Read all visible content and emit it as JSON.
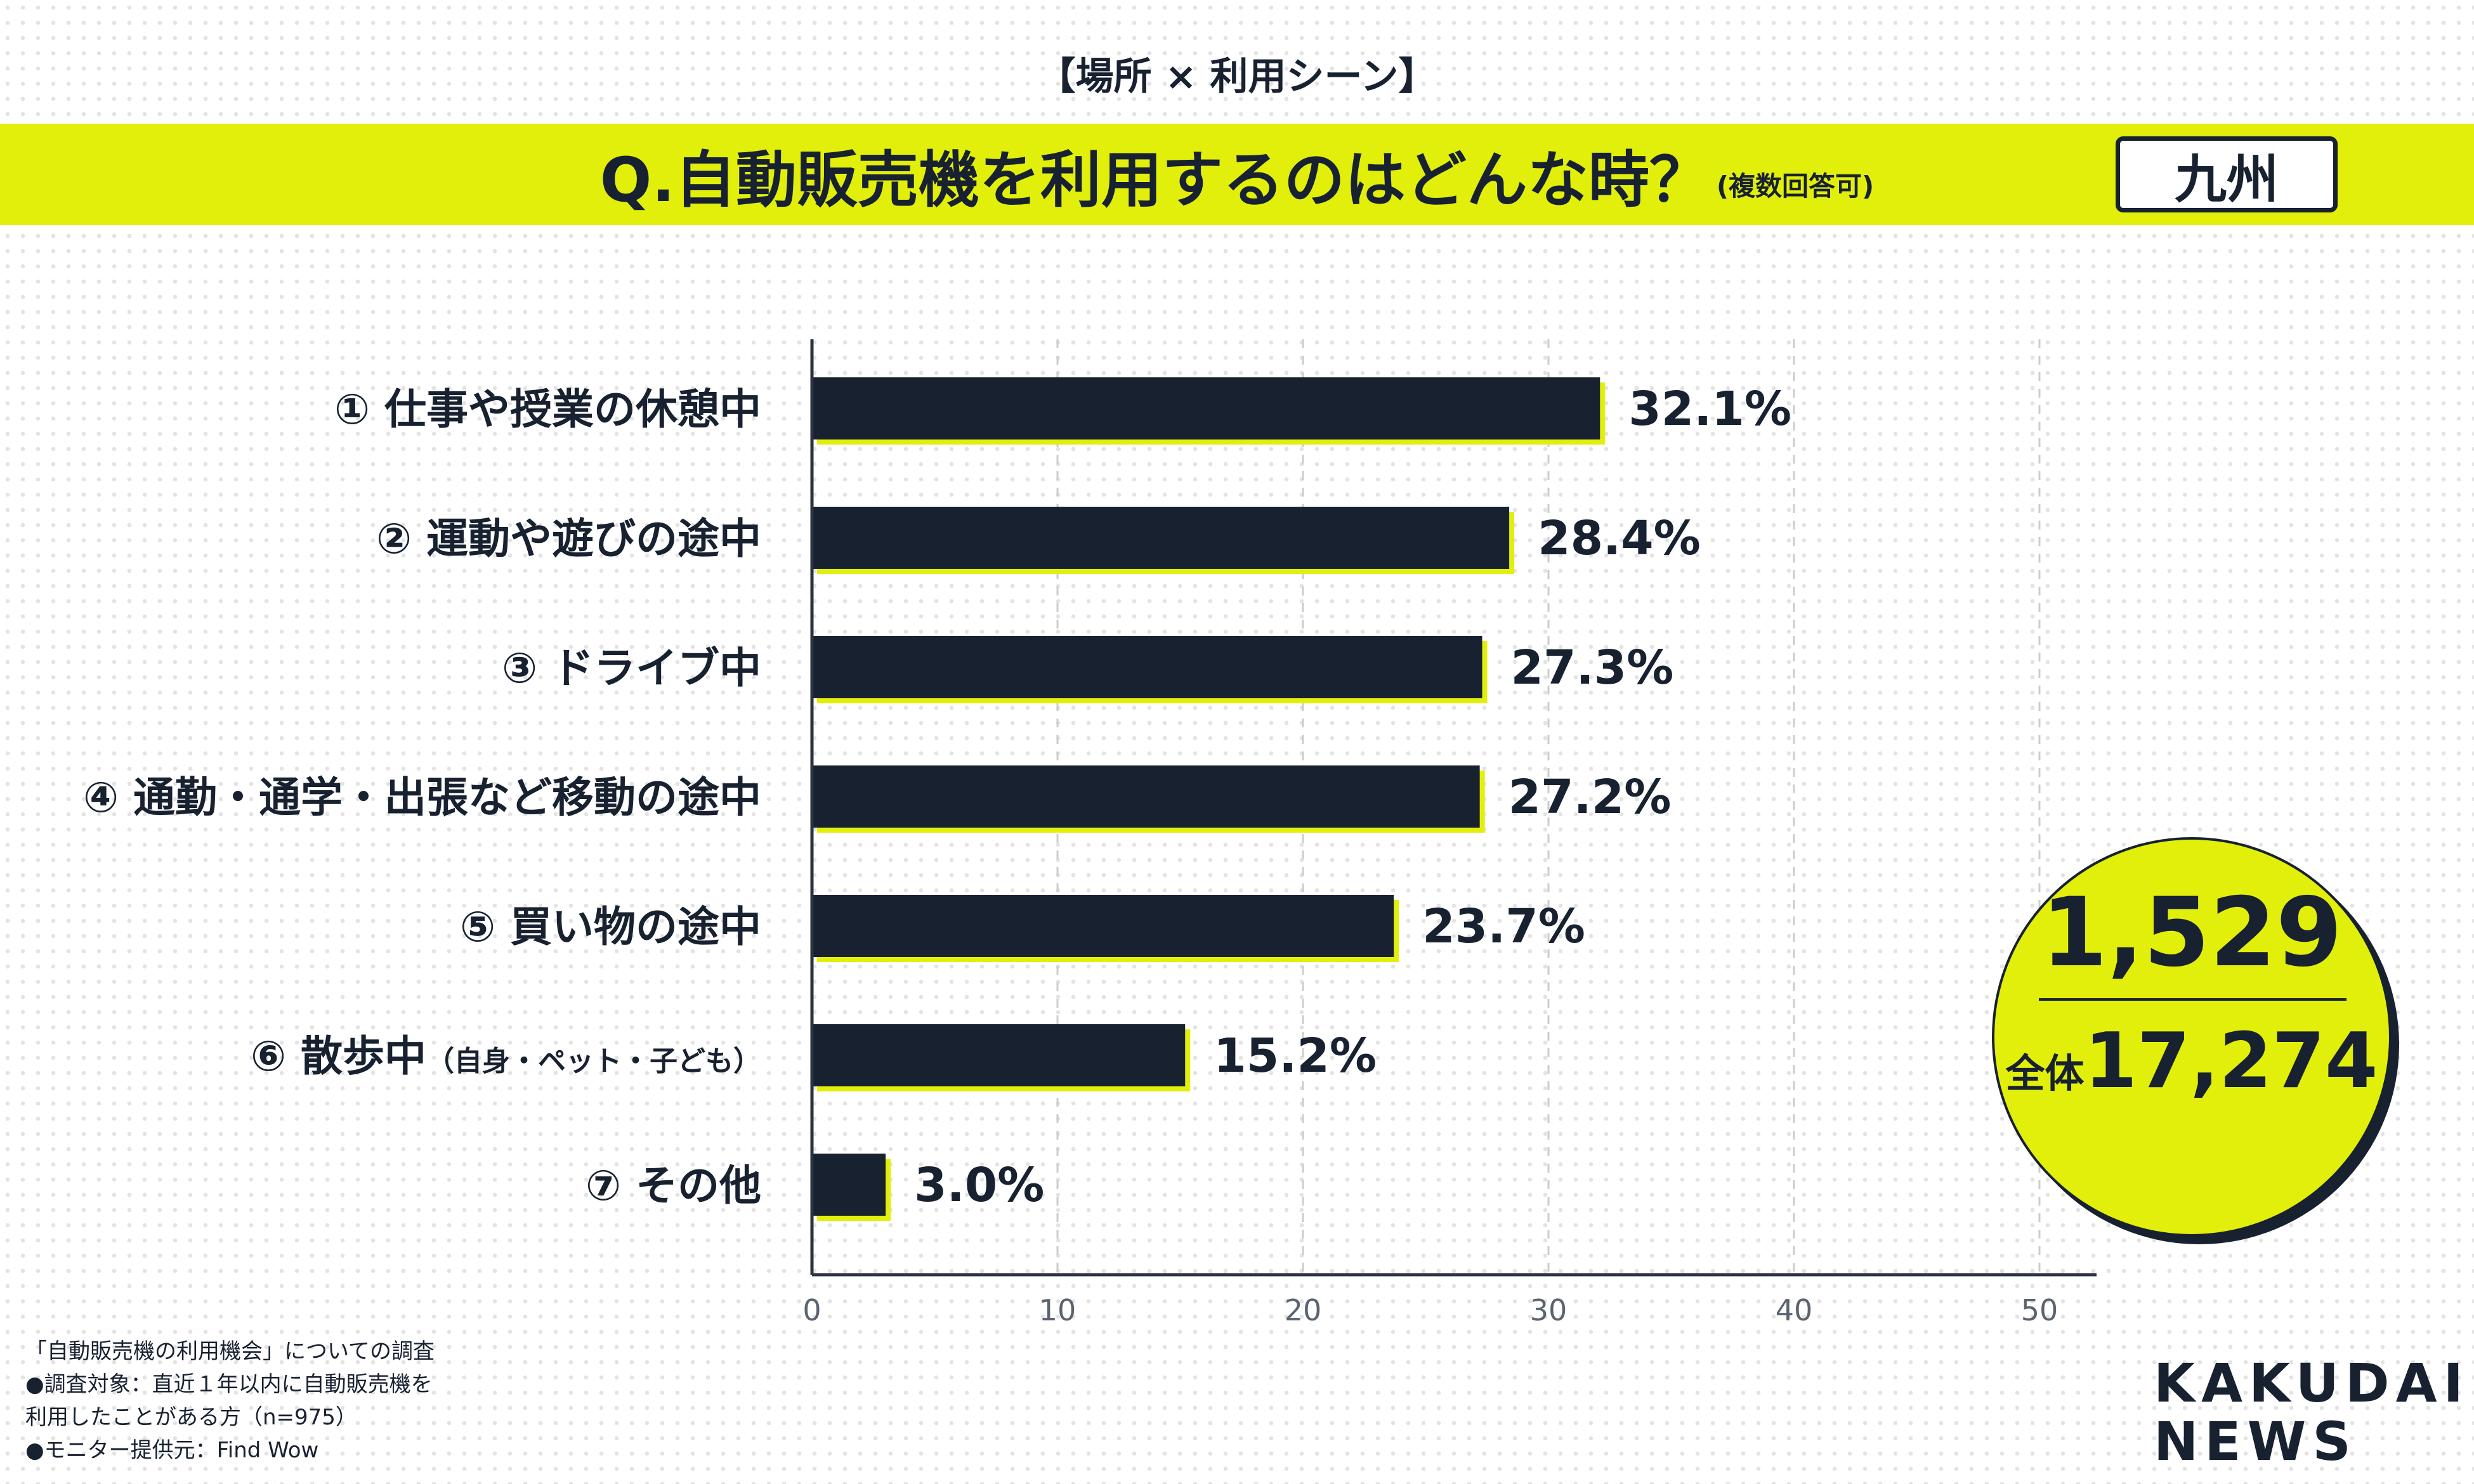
{
  "header": {
    "supertitle": "【場所 × 利用シーン】",
    "question": "Q.自動販売機を利用するのはどんな時？",
    "question_note": "(複数回答可)",
    "region": "九州"
  },
  "colors": {
    "accent": "#e2ef0b",
    "bar": "#172130",
    "text": "#172130",
    "grid": "#cccccc"
  },
  "chart_data": {
    "type": "bar",
    "orientation": "horizontal",
    "categories": [
      "① 仕事や授業の休憩中",
      "② 運動や遊びの途中",
      "③ ドライブ中",
      "④ 通勤・通学・出張など移動の途中",
      "⑤ 買い物の途中",
      "⑥ 散歩中",
      "⑦ その他"
    ],
    "category_notes": [
      "",
      "",
      "",
      "",
      "",
      "（自身・ペット・子ども）",
      ""
    ],
    "values": [
      32.1,
      28.4,
      27.3,
      27.2,
      23.7,
      15.2,
      3.0
    ],
    "value_labels": [
      "32.1%",
      "28.4%",
      "27.3%",
      "27.2%",
      "23.7%",
      "15.2%",
      "3.0%"
    ],
    "xlim": [
      0,
      50
    ],
    "xticks": [
      0,
      10,
      20,
      30,
      40,
      50
    ],
    "grid": "vertical dashed",
    "xlabel": "",
    "ylabel": ""
  },
  "totals": {
    "region_count": "1,529",
    "overall_label": "全体",
    "overall_count": "17,274"
  },
  "footnotes": [
    "「自動販売機の利用機会」についての調査",
    "●調査対象：直近１年以内に自動販売機を",
    "利用したことがある方（n=975）",
    "●モニター提供元：Find Wow"
  ],
  "brand": {
    "line1": "KAKUDAI",
    "line2": "NEWS"
  }
}
